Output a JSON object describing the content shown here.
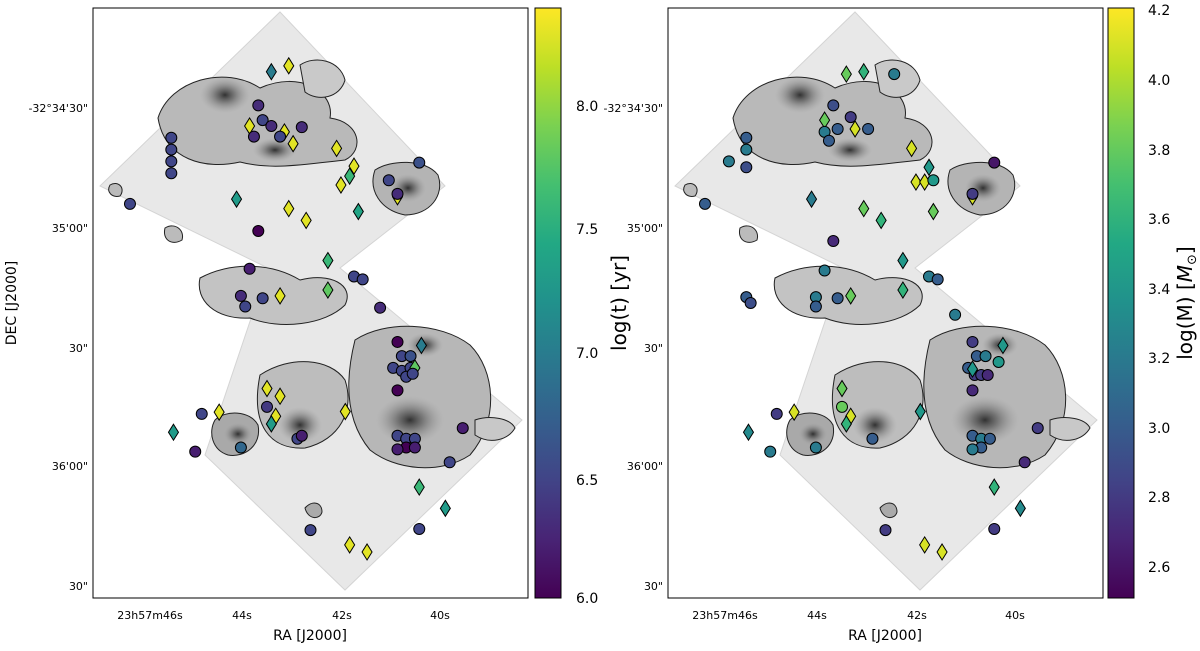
{
  "chart_data": [
    {
      "type": "scatter",
      "xlabel": "RA [J2000]",
      "ylabel": "DEC [J2000]",
      "x_ticks": [
        "23h57m46s",
        "44s",
        "42s",
        "40s"
      ],
      "y_ticks": [
        "-32°34'30\"",
        "35'00\"",
        "30\"",
        "36'00\"",
        "30\""
      ],
      "colorbar": {
        "label": "log(t) [yr]",
        "range": [
          6.0,
          8.4
        ],
        "ticks": [
          "6.0",
          "6.5",
          "7.0",
          "7.5",
          "8.0"
        ],
        "colormap": "viridis"
      },
      "markers": [
        {
          "shape": "diamond",
          "x": 0.41,
          "y": 0.108,
          "c": 7.0
        },
        {
          "shape": "diamond",
          "x": 0.45,
          "y": 0.098,
          "c": 8.3
        },
        {
          "shape": "circle",
          "x": 0.38,
          "y": 0.165,
          "c": 6.3
        },
        {
          "shape": "circle",
          "x": 0.39,
          "y": 0.19,
          "c": 6.5
        },
        {
          "shape": "diamond",
          "x": 0.36,
          "y": 0.2,
          "c": 8.3
        },
        {
          "shape": "circle",
          "x": 0.41,
          "y": 0.2,
          "c": 6.3
        },
        {
          "shape": "diamond",
          "x": 0.44,
          "y": 0.21,
          "c": 8.3
        },
        {
          "shape": "circle",
          "x": 0.48,
          "y": 0.202,
          "c": 6.3
        },
        {
          "shape": "circle",
          "x": 0.37,
          "y": 0.218,
          "c": 6.3
        },
        {
          "shape": "circle",
          "x": 0.43,
          "y": 0.218,
          "c": 6.5
        },
        {
          "shape": "circle",
          "x": 0.18,
          "y": 0.22,
          "c": 6.5
        },
        {
          "shape": "circle",
          "x": 0.18,
          "y": 0.24,
          "c": 6.5
        },
        {
          "shape": "circle",
          "x": 0.18,
          "y": 0.26,
          "c": 6.5
        },
        {
          "shape": "circle",
          "x": 0.18,
          "y": 0.28,
          "c": 6.5
        },
        {
          "shape": "diamond",
          "x": 0.46,
          "y": 0.23,
          "c": 8.3
        },
        {
          "shape": "diamond",
          "x": 0.56,
          "y": 0.238,
          "c": 8.3
        },
        {
          "shape": "diamond",
          "x": 0.6,
          "y": 0.268,
          "c": 8.3
        },
        {
          "shape": "diamond",
          "x": 0.57,
          "y": 0.3,
          "c": 8.3
        },
        {
          "shape": "diamond",
          "x": 0.59,
          "y": 0.285,
          "c": 7.6
        },
        {
          "shape": "circle",
          "x": 0.75,
          "y": 0.262,
          "c": 6.6
        },
        {
          "shape": "circle",
          "x": 0.68,
          "y": 0.292,
          "c": 6.5
        },
        {
          "shape": "diamond",
          "x": 0.7,
          "y": 0.32,
          "c": 8.3
        },
        {
          "shape": "circle",
          "x": 0.7,
          "y": 0.315,
          "c": 6.3
        },
        {
          "shape": "circle",
          "x": 0.085,
          "y": 0.332,
          "c": 6.5
        },
        {
          "shape": "diamond",
          "x": 0.33,
          "y": 0.324,
          "c": 7.3
        },
        {
          "shape": "diamond",
          "x": 0.45,
          "y": 0.34,
          "c": 8.3
        },
        {
          "shape": "diamond",
          "x": 0.49,
          "y": 0.36,
          "c": 8.3
        },
        {
          "shape": "diamond",
          "x": 0.61,
          "y": 0.345,
          "c": 7.4
        },
        {
          "shape": "circle",
          "x": 0.38,
          "y": 0.378,
          "c": 6.0
        },
        {
          "shape": "diamond",
          "x": 0.54,
          "y": 0.428,
          "c": 7.6
        },
        {
          "shape": "circle",
          "x": 0.6,
          "y": 0.455,
          "c": 6.5
        },
        {
          "shape": "circle",
          "x": 0.62,
          "y": 0.46,
          "c": 6.5
        },
        {
          "shape": "circle",
          "x": 0.36,
          "y": 0.442,
          "c": 6.2
        },
        {
          "shape": "circle",
          "x": 0.34,
          "y": 0.488,
          "c": 6.3
        },
        {
          "shape": "circle",
          "x": 0.39,
          "y": 0.492,
          "c": 6.5
        },
        {
          "shape": "diamond",
          "x": 0.43,
          "y": 0.488,
          "c": 8.3
        },
        {
          "shape": "diamond",
          "x": 0.54,
          "y": 0.478,
          "c": 7.8
        },
        {
          "shape": "circle",
          "x": 0.35,
          "y": 0.506,
          "c": 6.5
        },
        {
          "shape": "circle",
          "x": 0.66,
          "y": 0.508,
          "c": 6.3
        },
        {
          "shape": "circle",
          "x": 0.7,
          "y": 0.566,
          "c": 6.0
        },
        {
          "shape": "circle",
          "x": 0.71,
          "y": 0.59,
          "c": 6.5
        },
        {
          "shape": "circle",
          "x": 0.73,
          "y": 0.59,
          "c": 6.6
        },
        {
          "shape": "diamond",
          "x": 0.755,
          "y": 0.572,
          "c": 7.0
        },
        {
          "shape": "circle",
          "x": 0.69,
          "y": 0.61,
          "c": 6.5
        },
        {
          "shape": "circle",
          "x": 0.71,
          "y": 0.615,
          "c": 6.5
        },
        {
          "shape": "circle",
          "x": 0.73,
          "y": 0.61,
          "c": 6.5
        },
        {
          "shape": "diamond",
          "x": 0.74,
          "y": 0.61,
          "c": 7.8
        },
        {
          "shape": "circle",
          "x": 0.72,
          "y": 0.625,
          "c": 6.5
        },
        {
          "shape": "circle",
          "x": 0.735,
          "y": 0.62,
          "c": 6.5
        },
        {
          "shape": "circle",
          "x": 0.7,
          "y": 0.648,
          "c": 6.0
        },
        {
          "shape": "diamond",
          "x": 0.4,
          "y": 0.645,
          "c": 8.3
        },
        {
          "shape": "diamond",
          "x": 0.43,
          "y": 0.658,
          "c": 8.3
        },
        {
          "shape": "circle",
          "x": 0.4,
          "y": 0.676,
          "c": 6.4
        },
        {
          "shape": "diamond",
          "x": 0.29,
          "y": 0.685,
          "c": 8.3
        },
        {
          "shape": "circle",
          "x": 0.25,
          "y": 0.688,
          "c": 6.5
        },
        {
          "shape": "diamond",
          "x": 0.58,
          "y": 0.684,
          "c": 8.3
        },
        {
          "shape": "diamond",
          "x": 0.42,
          "y": 0.692,
          "c": 8.3
        },
        {
          "shape": "diamond",
          "x": 0.41,
          "y": 0.705,
          "c": 7.3
        },
        {
          "shape": "circle",
          "x": 0.85,
          "y": 0.712,
          "c": 6.2
        },
        {
          "shape": "diamond",
          "x": 0.185,
          "y": 0.719,
          "c": 7.3
        },
        {
          "shape": "circle",
          "x": 0.47,
          "y": 0.73,
          "c": 6.5
        },
        {
          "shape": "circle",
          "x": 0.48,
          "y": 0.725,
          "c": 6.2
        },
        {
          "shape": "circle",
          "x": 0.7,
          "y": 0.725,
          "c": 6.5
        },
        {
          "shape": "circle",
          "x": 0.72,
          "y": 0.73,
          "c": 6.5
        },
        {
          "shape": "circle",
          "x": 0.74,
          "y": 0.73,
          "c": 6.5
        },
        {
          "shape": "circle",
          "x": 0.72,
          "y": 0.745,
          "c": 6.0
        },
        {
          "shape": "circle",
          "x": 0.7,
          "y": 0.748,
          "c": 6.2
        },
        {
          "shape": "circle",
          "x": 0.74,
          "y": 0.745,
          "c": 6.2
        },
        {
          "shape": "circle",
          "x": 0.34,
          "y": 0.745,
          "c": 6.8
        },
        {
          "shape": "circle",
          "x": 0.235,
          "y": 0.752,
          "c": 6.2
        },
        {
          "shape": "circle",
          "x": 0.82,
          "y": 0.77,
          "c": 6.5
        },
        {
          "shape": "diamond",
          "x": 0.75,
          "y": 0.812,
          "c": 7.6
        },
        {
          "shape": "diamond",
          "x": 0.81,
          "y": 0.848,
          "c": 7.3
        },
        {
          "shape": "circle",
          "x": 0.5,
          "y": 0.885,
          "c": 6.5
        },
        {
          "shape": "circle",
          "x": 0.75,
          "y": 0.883,
          "c": 6.5
        },
        {
          "shape": "diamond",
          "x": 0.59,
          "y": 0.91,
          "c": 8.3
        },
        {
          "shape": "diamond",
          "x": 0.63,
          "y": 0.922,
          "c": 8.3
        }
      ]
    },
    {
      "type": "scatter",
      "xlabel": "RA [J2000]",
      "ylabel": "",
      "x_ticks": [
        "23h57m46s",
        "44s",
        "42s",
        "40s"
      ],
      "y_ticks": [
        "-32°34'30\"",
        "35'00\"",
        "30\"",
        "36'00\"",
        "30\""
      ],
      "colorbar": {
        "label": "log(M) [M_⊙]",
        "range": [
          2.5,
          4.2
        ],
        "ticks": [
          "2.6",
          "2.8",
          "3.0",
          "3.2",
          "3.4",
          "3.6",
          "3.8",
          "4.0",
          "4.2"
        ],
        "colormap": "viridis"
      },
      "markers": [
        {
          "shape": "diamond",
          "x": 0.41,
          "y": 0.112,
          "c": 3.8
        },
        {
          "shape": "diamond",
          "x": 0.45,
          "y": 0.108,
          "c": 3.6
        },
        {
          "shape": "circle",
          "x": 0.52,
          "y": 0.112,
          "c": 3.2
        },
        {
          "shape": "circle",
          "x": 0.38,
          "y": 0.165,
          "c": 2.9
        },
        {
          "shape": "diamond",
          "x": 0.36,
          "y": 0.19,
          "c": 3.8
        },
        {
          "shape": "circle",
          "x": 0.42,
          "y": 0.185,
          "c": 2.8
        },
        {
          "shape": "circle",
          "x": 0.36,
          "y": 0.21,
          "c": 3.2
        },
        {
          "shape": "circle",
          "x": 0.39,
          "y": 0.205,
          "c": 3.0
        },
        {
          "shape": "diamond",
          "x": 0.43,
          "y": 0.205,
          "c": 4.1
        },
        {
          "shape": "circle",
          "x": 0.46,
          "y": 0.205,
          "c": 3.0
        },
        {
          "shape": "circle",
          "x": 0.37,
          "y": 0.225,
          "c": 3.0
        },
        {
          "shape": "circle",
          "x": 0.18,
          "y": 0.22,
          "c": 3.0
        },
        {
          "shape": "circle",
          "x": 0.18,
          "y": 0.24,
          "c": 3.2
        },
        {
          "shape": "circle",
          "x": 0.14,
          "y": 0.26,
          "c": 3.2
        },
        {
          "shape": "circle",
          "x": 0.18,
          "y": 0.27,
          "c": 2.9
        },
        {
          "shape": "diamond",
          "x": 0.56,
          "y": 0.238,
          "c": 4.1
        },
        {
          "shape": "diamond",
          "x": 0.6,
          "y": 0.27,
          "c": 3.4
        },
        {
          "shape": "diamond",
          "x": 0.57,
          "y": 0.295,
          "c": 4.1
        },
        {
          "shape": "diamond",
          "x": 0.59,
          "y": 0.295,
          "c": 4.1
        },
        {
          "shape": "circle",
          "x": 0.75,
          "y": 0.262,
          "c": 2.6
        },
        {
          "shape": "circle",
          "x": 0.61,
          "y": 0.292,
          "c": 3.4
        },
        {
          "shape": "diamond",
          "x": 0.7,
          "y": 0.32,
          "c": 4.1
        },
        {
          "shape": "circle",
          "x": 0.7,
          "y": 0.315,
          "c": 2.8
        },
        {
          "shape": "circle",
          "x": 0.085,
          "y": 0.332,
          "c": 3.0
        },
        {
          "shape": "diamond",
          "x": 0.33,
          "y": 0.324,
          "c": 3.2
        },
        {
          "shape": "diamond",
          "x": 0.45,
          "y": 0.34,
          "c": 3.8
        },
        {
          "shape": "diamond",
          "x": 0.49,
          "y": 0.36,
          "c": 3.6
        },
        {
          "shape": "diamond",
          "x": 0.61,
          "y": 0.345,
          "c": 3.8
        },
        {
          "shape": "circle",
          "x": 0.38,
          "y": 0.395,
          "c": 2.7
        },
        {
          "shape": "diamond",
          "x": 0.54,
          "y": 0.428,
          "c": 3.4
        },
        {
          "shape": "circle",
          "x": 0.6,
          "y": 0.455,
          "c": 3.2
        },
        {
          "shape": "circle",
          "x": 0.62,
          "y": 0.46,
          "c": 3.0
        },
        {
          "shape": "circle",
          "x": 0.36,
          "y": 0.445,
          "c": 3.2
        },
        {
          "shape": "circle",
          "x": 0.18,
          "y": 0.49,
          "c": 3.0
        },
        {
          "shape": "circle",
          "x": 0.19,
          "y": 0.5,
          "c": 2.9
        },
        {
          "shape": "circle",
          "x": 0.34,
          "y": 0.49,
          "c": 3.2
        },
        {
          "shape": "circle",
          "x": 0.39,
          "y": 0.492,
          "c": 3.0
        },
        {
          "shape": "diamond",
          "x": 0.42,
          "y": 0.488,
          "c": 3.8
        },
        {
          "shape": "diamond",
          "x": 0.54,
          "y": 0.478,
          "c": 3.6
        },
        {
          "shape": "circle",
          "x": 0.34,
          "y": 0.506,
          "c": 3.0
        },
        {
          "shape": "circle",
          "x": 0.66,
          "y": 0.52,
          "c": 3.2
        },
        {
          "shape": "circle",
          "x": 0.7,
          "y": 0.566,
          "c": 2.8
        },
        {
          "shape": "circle",
          "x": 0.71,
          "y": 0.59,
          "c": 3.0
        },
        {
          "shape": "circle",
          "x": 0.73,
          "y": 0.59,
          "c": 3.2
        },
        {
          "shape": "circle",
          "x": 0.76,
          "y": 0.6,
          "c": 3.4
        },
        {
          "shape": "diamond",
          "x": 0.77,
          "y": 0.572,
          "c": 3.4
        },
        {
          "shape": "circle",
          "x": 0.69,
          "y": 0.61,
          "c": 3.0
        },
        {
          "shape": "circle",
          "x": 0.705,
          "y": 0.622,
          "c": 2.8
        },
        {
          "shape": "circle",
          "x": 0.72,
          "y": 0.622,
          "c": 2.8
        },
        {
          "shape": "circle",
          "x": 0.735,
          "y": 0.622,
          "c": 2.7
        },
        {
          "shape": "diamond",
          "x": 0.7,
          "y": 0.612,
          "c": 3.4
        },
        {
          "shape": "circle",
          "x": 0.7,
          "y": 0.648,
          "c": 2.7
        },
        {
          "shape": "diamond",
          "x": 0.4,
          "y": 0.645,
          "c": 3.8
        },
        {
          "shape": "circle",
          "x": 0.4,
          "y": 0.676,
          "c": 3.8
        },
        {
          "shape": "diamond",
          "x": 0.29,
          "y": 0.685,
          "c": 4.1
        },
        {
          "shape": "circle",
          "x": 0.25,
          "y": 0.688,
          "c": 2.8
        },
        {
          "shape": "diamond",
          "x": 0.42,
          "y": 0.692,
          "c": 4.1
        },
        {
          "shape": "diamond",
          "x": 0.41,
          "y": 0.705,
          "c": 3.6
        },
        {
          "shape": "diamond",
          "x": 0.58,
          "y": 0.684,
          "c": 3.4
        },
        {
          "shape": "circle",
          "x": 0.85,
          "y": 0.712,
          "c": 2.8
        },
        {
          "shape": "diamond",
          "x": 0.185,
          "y": 0.719,
          "c": 3.3
        },
        {
          "shape": "circle",
          "x": 0.47,
          "y": 0.73,
          "c": 3.0
        },
        {
          "shape": "circle",
          "x": 0.7,
          "y": 0.725,
          "c": 3.0
        },
        {
          "shape": "circle",
          "x": 0.72,
          "y": 0.73,
          "c": 3.2
        },
        {
          "shape": "circle",
          "x": 0.74,
          "y": 0.73,
          "c": 3.0
        },
        {
          "shape": "circle",
          "x": 0.72,
          "y": 0.745,
          "c": 3.0
        },
        {
          "shape": "circle",
          "x": 0.7,
          "y": 0.748,
          "c": 3.2
        },
        {
          "shape": "circle",
          "x": 0.34,
          "y": 0.745,
          "c": 3.2
        },
        {
          "shape": "circle",
          "x": 0.235,
          "y": 0.752,
          "c": 3.2
        },
        {
          "shape": "circle",
          "x": 0.82,
          "y": 0.77,
          "c": 2.7
        },
        {
          "shape": "diamond",
          "x": 0.75,
          "y": 0.812,
          "c": 3.6
        },
        {
          "shape": "diamond",
          "x": 0.81,
          "y": 0.848,
          "c": 3.3
        },
        {
          "shape": "circle",
          "x": 0.5,
          "y": 0.885,
          "c": 2.8
        },
        {
          "shape": "circle",
          "x": 0.75,
          "y": 0.883,
          "c": 2.8
        },
        {
          "shape": "diamond",
          "x": 0.59,
          "y": 0.91,
          "c": 4.1
        },
        {
          "shape": "diamond",
          "x": 0.63,
          "y": 0.922,
          "c": 4.1
        }
      ]
    }
  ]
}
